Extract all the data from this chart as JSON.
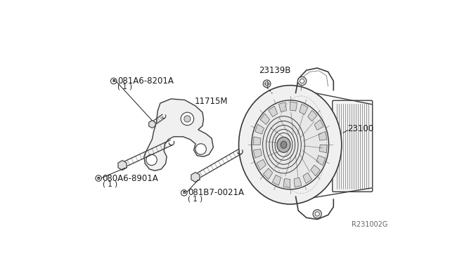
{
  "bg_color": "#ffffff",
  "line_color": "#3a3a3a",
  "text_color": "#1a1a1a",
  "fig_width": 6.4,
  "fig_height": 3.72,
  "dpi": 100,
  "reference_code": "R231002G",
  "label_081A6_8201A": "081A6-8201A",
  "label_11715M": "11715M",
  "label_080A6_8901A": "080A6-8901A",
  "label_081B7_0021A": "081B7-0021A",
  "label_23139B": "23139B",
  "label_23100": "23100",
  "label_qty": "( 1 )"
}
